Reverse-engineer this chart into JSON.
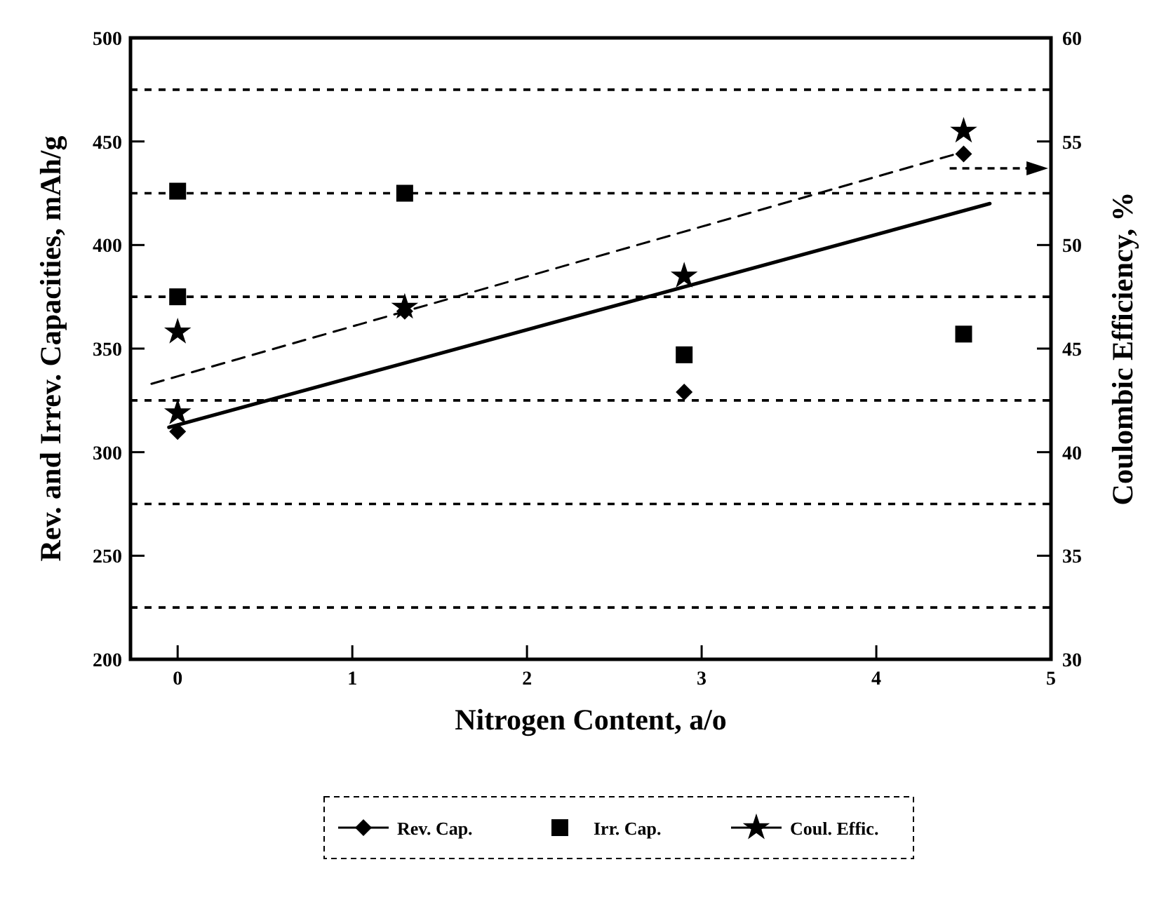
{
  "chart_data": {
    "type": "scatter",
    "xlabel": "Nitrogen Content, a/o",
    "ylabel": "Rev. and Irrev. Capacities, mAh/g",
    "y2label": "Coulombic Efficiency, %",
    "xlim": [
      -0.27,
      5
    ],
    "xticks": [
      0,
      1,
      2,
      3,
      4,
      5
    ],
    "ylim": [
      200,
      500
    ],
    "yticks": [
      200,
      250,
      300,
      350,
      400,
      450,
      500
    ],
    "y2lim": [
      30,
      60
    ],
    "y2ticks": [
      30,
      35,
      40,
      45,
      50,
      55,
      60
    ],
    "grid": false,
    "legend": "bottom",
    "series": [
      {
        "name": "Rev. Cap.",
        "marker": "diamond",
        "color": "#000000",
        "x": [
          0,
          1.3,
          2.9,
          4.5
        ],
        "values": [
          310,
          368,
          329,
          444
        ]
      },
      {
        "name": "Irr. Cap.",
        "marker": "square",
        "color": "#000000",
        "x": [
          0,
          0,
          1.3,
          2.9,
          4.5
        ],
        "values": [
          426,
          375,
          425,
          347,
          357
        ]
      },
      {
        "name": "Coul. Effic.",
        "marker": "star",
        "axis": "y2",
        "color": "#000000",
        "x": [
          0,
          0,
          1.3,
          2.9,
          4.5
        ],
        "values": [
          45.8,
          41.9,
          47,
          48.5,
          55.5
        ]
      },
      {
        "type": "line",
        "line_style": "solid",
        "color": "#000000",
        "x": [
          -0.05,
          4.65
        ],
        "values": [
          312,
          420
        ]
      },
      {
        "type": "line",
        "line_style": "dashed",
        "axis": "y2",
        "color": "#000000",
        "x": [
          -0.15,
          4.5
        ],
        "values": [
          43.3,
          54.5
        ]
      }
    ],
    "ref_lines": [
      {
        "axis": "y",
        "value": 225,
        "line_style": "dashed",
        "color": "#000000"
      },
      {
        "axis": "y",
        "value": 275,
        "line_style": "dashed",
        "color": "#000000"
      },
      {
        "axis": "y",
        "value": 325,
        "line_style": "dashed",
        "color": "#000000"
      },
      {
        "axis": "y",
        "value": 375,
        "line_style": "dashed",
        "color": "#000000"
      },
      {
        "axis": "y",
        "value": 425,
        "line_style": "dashed",
        "color": "#000000"
      },
      {
        "axis": "y",
        "value": 475,
        "line_style": "dashed",
        "color": "#000000"
      }
    ]
  }
}
